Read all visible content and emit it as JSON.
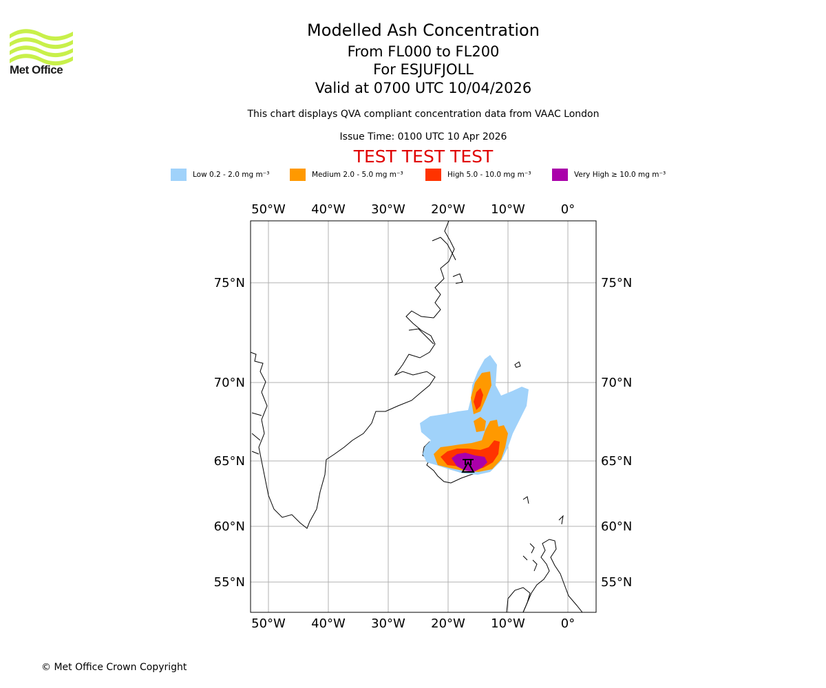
{
  "branding": {
    "logo_text": "Met Office",
    "logo_color": "#c8f04a"
  },
  "header": {
    "title_line1": "Modelled Ash Concentration",
    "title_line2": "From FL000 to FL200",
    "title_line3": "For ESJUFJOLL",
    "title_line4": "Valid at 0700 UTC 10/04/2026",
    "subtitle": "This chart displays QVA compliant concentration data from VAAC London",
    "issue_time": "Issue Time: 0100 UTC 10 Apr 2026",
    "test_banner": "TEST TEST TEST",
    "test_color": "#e00000"
  },
  "legend": [
    {
      "label": "Low 0.2 - 2.0 mg m⁻³",
      "color": "#a0d2fa"
    },
    {
      "label": "Medium 2.0 - 5.0 mg m⁻³",
      "color": "#ff9900"
    },
    {
      "label": "High 5.0 - 10.0 mg m⁻³",
      "color": "#ff3300"
    },
    {
      "label": "Very High ≥ 10.0 mg m⁻³",
      "color": "#aa00aa"
    }
  ],
  "map": {
    "lon_ticks": [
      "50°W",
      "40°W",
      "30°W",
      "20°W",
      "10°W",
      "0°"
    ],
    "lat_ticks": [
      "75°N",
      "70°N",
      "65°N",
      "60°N",
      "55°N"
    ],
    "volcano": "ESJUFJOLL"
  },
  "footer": {
    "copyright": "© Met Office Crown Copyright"
  }
}
